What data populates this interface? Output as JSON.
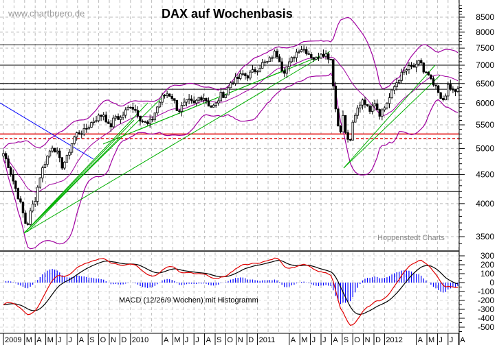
{
  "chart_data": {
    "type": "candlestick",
    "title": "DAX auf Wochenbasis",
    "watermark": "www.chartbuero.de",
    "source_note": "Hoppenstedt Charts",
    "macd_label": "MACD (12/26/9 Wochen) mit Histogramm",
    "y_scale": "log",
    "ylim": [
      3350,
      8900
    ],
    "y_ticks": [
      3500,
      4000,
      4500,
      5000,
      5500,
      6000,
      6500,
      7000,
      7500,
      8000,
      8500
    ],
    "macd_ylim": [
      -560,
      330
    ],
    "macd_ticks": [
      300,
      200,
      100,
      0,
      -100,
      -200,
      -300,
      -400,
      -500
    ],
    "x_range_months": [
      0,
      43.3
    ],
    "x_ticks": [
      {
        "m": 0,
        "label": "2009"
      },
      {
        "m": 2,
        "label": "M"
      },
      {
        "m": 3,
        "label": "A"
      },
      {
        "m": 4,
        "label": "M"
      },
      {
        "m": 5,
        "label": "J"
      },
      {
        "m": 6,
        "label": "J"
      },
      {
        "m": 7,
        "label": "A"
      },
      {
        "m": 8,
        "label": "S"
      },
      {
        "m": 9,
        "label": "O"
      },
      {
        "m": 10,
        "label": "N"
      },
      {
        "m": 11,
        "label": "D"
      },
      {
        "m": 12,
        "label": "2010"
      },
      {
        "m": 15,
        "label": "A"
      },
      {
        "m": 16,
        "label": "M"
      },
      {
        "m": 17,
        "label": "J"
      },
      {
        "m": 18,
        "label": "J"
      },
      {
        "m": 19,
        "label": "A"
      },
      {
        "m": 20,
        "label": "S"
      },
      {
        "m": 21,
        "label": "O"
      },
      {
        "m": 22,
        "label": "N"
      },
      {
        "m": 23,
        "label": "D"
      },
      {
        "m": 24,
        "label": "2011"
      },
      {
        "m": 27,
        "label": "A"
      },
      {
        "m": 28,
        "label": "M"
      },
      {
        "m": 29,
        "label": "J"
      },
      {
        "m": 30,
        "label": "J"
      },
      {
        "m": 31,
        "label": "A"
      },
      {
        "m": 32,
        "label": "S"
      },
      {
        "m": 33,
        "label": "O"
      },
      {
        "m": 34,
        "label": "N"
      },
      {
        "m": 35,
        "label": "D"
      },
      {
        "m": 36,
        "label": "2012"
      },
      {
        "m": 39,
        "label": "A"
      },
      {
        "m": 40,
        "label": "M"
      },
      {
        "m": 41,
        "label": "J"
      },
      {
        "m": 42,
        "label": "J"
      },
      {
        "m": 43,
        "label": "A"
      }
    ],
    "horizontal_levels": [
      {
        "value": 7600,
        "color": "#000000",
        "style": "solid"
      },
      {
        "value": 7000,
        "color": "#000000",
        "style": "solid"
      },
      {
        "value": 6500,
        "color": "#000000",
        "style": "solid"
      },
      {
        "value": 6350,
        "color": "#000000",
        "style": "solid"
      },
      {
        "value": 5300,
        "color": "#e00000",
        "style": "solid"
      },
      {
        "value": 5200,
        "color": "#e00000",
        "style": "dashed"
      },
      {
        "value": 4500,
        "color": "#000000",
        "style": "solid"
      },
      {
        "value": 4200,
        "color": "#000000",
        "style": "solid"
      }
    ],
    "price_keypoints_month_value": [
      [
        0,
        4900
      ],
      [
        0.5,
        4650
      ],
      [
        1,
        4340
      ],
      [
        1.6,
        4000
      ],
      [
        2.2,
        3620
      ],
      [
        2.6,
        3900
      ],
      [
        3,
        4080
      ],
      [
        3.5,
        4500
      ],
      [
        4,
        4770
      ],
      [
        4.6,
        5050
      ],
      [
        5,
        4940
      ],
      [
        5.5,
        4650
      ],
      [
        6,
        4810
      ],
      [
        6.6,
        5200
      ],
      [
        7,
        5330
      ],
      [
        7.6,
        5350
      ],
      [
        8,
        5460
      ],
      [
        8.5,
        5600
      ],
      [
        9,
        5680
      ],
      [
        9.5,
        5750
      ],
      [
        10,
        5420
      ],
      [
        10.6,
        5700
      ],
      [
        11,
        5630
      ],
      [
        12,
        5960
      ],
      [
        12.6,
        5800
      ],
      [
        13,
        5610
      ],
      [
        13.6,
        5500
      ],
      [
        14,
        5600
      ],
      [
        14.6,
        5950
      ],
      [
        15,
        6150
      ],
      [
        15.5,
        6250
      ],
      [
        16,
        6140
      ],
      [
        16.5,
        5800
      ],
      [
        17,
        5960
      ],
      [
        17.5,
        6050
      ],
      [
        18,
        5970
      ],
      [
        18.5,
        6150
      ],
      [
        19,
        6150
      ],
      [
        19.5,
        5920
      ],
      [
        20,
        5930
      ],
      [
        20.5,
        6200
      ],
      [
        21,
        6230
      ],
      [
        21.5,
        6550
      ],
      [
        22,
        6600
      ],
      [
        22.6,
        6750
      ],
      [
        23,
        6690
      ],
      [
        24,
        6910
      ],
      [
        24.5,
        7050
      ],
      [
        25,
        7080
      ],
      [
        25.6,
        7350
      ],
      [
        26,
        7270
      ],
      [
        26.4,
        6800
      ],
      [
        27,
        7040
      ],
      [
        27.5,
        7300
      ],
      [
        28,
        7510
      ],
      [
        28.5,
        7450
      ],
      [
        29,
        7290
      ],
      [
        29.5,
        7150
      ],
      [
        30,
        7380
      ],
      [
        30.5,
        7300
      ],
      [
        31,
        7160
      ],
      [
        31.2,
        6300
      ],
      [
        31.5,
        5600
      ],
      [
        31.8,
        5300
      ],
      [
        32,
        5790
      ],
      [
        32.4,
        5200
      ],
      [
        32.7,
        5100
      ],
      [
        33,
        5500
      ],
      [
        33.5,
        5900
      ],
      [
        34,
        6140
      ],
      [
        34.5,
        5800
      ],
      [
        35,
        6090
      ],
      [
        35.5,
        5750
      ],
      [
        36,
        5900
      ],
      [
        36.5,
        6150
      ],
      [
        37,
        6460
      ],
      [
        37.5,
        6700
      ],
      [
        38,
        6860
      ],
      [
        38.5,
        6950
      ],
      [
        39,
        6950
      ],
      [
        39.4,
        7150
      ],
      [
        39.7,
        6800
      ],
      [
        40,
        6760
      ],
      [
        40.5,
        6500
      ],
      [
        41,
        6300
      ],
      [
        41.4,
        6000
      ],
      [
        41.7,
        6200
      ],
      [
        42,
        6400
      ],
      [
        42.5,
        6300
      ],
      [
        43.1,
        6330
      ]
    ],
    "indicators": {
      "bollinger": {
        "period": 20,
        "sd": 2,
        "color": "#a000a0"
      },
      "macd": {
        "fast": 12,
        "slow": 26,
        "signal": 9,
        "macd_color": "#e00000",
        "signal_color": "#000000",
        "histogram_color": "#0000ff"
      }
    },
    "trendline_colors": {
      "green": "#00b000",
      "blue": "#0000ff"
    }
  }
}
